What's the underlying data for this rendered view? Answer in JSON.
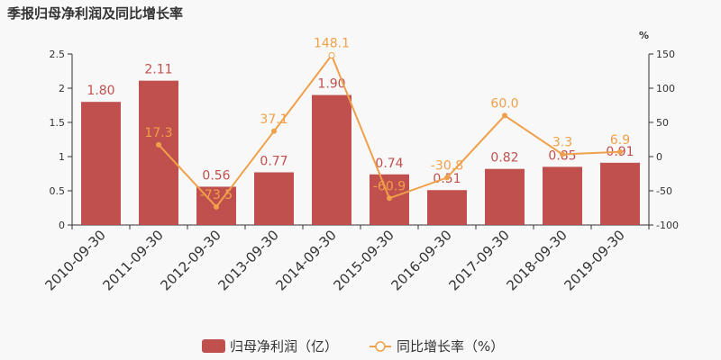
{
  "chart_data": {
    "type": "bar",
    "title": "季报归母净利润及同比增长率",
    "categories": [
      "2010-09-30",
      "2011-09-30",
      "2012-09-30",
      "2013-09-30",
      "2014-09-30",
      "2015-09-30",
      "2016-09-30",
      "2017-09-30",
      "2018-09-30",
      "2019-09-30"
    ],
    "series": [
      {
        "name": "归母净利润（亿）",
        "type": "bar",
        "axis": "left",
        "values": [
          1.8,
          2.11,
          0.56,
          0.77,
          1.9,
          0.74,
          0.51,
          0.82,
          0.85,
          0.91
        ],
        "labels": [
          "1.80",
          "2.11",
          "0.56",
          "0.77",
          "1.90",
          "0.74",
          "0.51",
          "0.82",
          "0.85",
          "0.91"
        ],
        "color": "#c0504d"
      },
      {
        "name": "同比增长率（%）",
        "type": "line",
        "axis": "right",
        "values": [
          null,
          17.3,
          -73.5,
          37.1,
          148.1,
          -60.9,
          -30.8,
          60.0,
          3.3,
          6.9
        ],
        "labels": [
          "",
          "17.3",
          "-73.5",
          "37.1",
          "148.1",
          "-60.9",
          "-30.8",
          "60.0",
          "3.3",
          "6.9"
        ],
        "color": "#f0a04b"
      }
    ],
    "y_left": {
      "ylim": [
        0,
        2.5
      ],
      "ticks": [
        "0",
        "0.5",
        "1",
        "1.5",
        "2",
        "2.5"
      ],
      "tick_values": [
        0,
        0.5,
        1,
        1.5,
        2,
        2.5
      ]
    },
    "y_right": {
      "ylim": [
        -100,
        150
      ],
      "unit": "%",
      "ticks": [
        "-100",
        "-50",
        "0",
        "50",
        "100",
        "150"
      ],
      "tick_values": [
        -100,
        -50,
        0,
        50,
        100,
        150
      ]
    },
    "grid": false,
    "legend": "bottom-center",
    "legend_items": [
      "归母净利润（亿）",
      "同比增长率（%）"
    ]
  }
}
